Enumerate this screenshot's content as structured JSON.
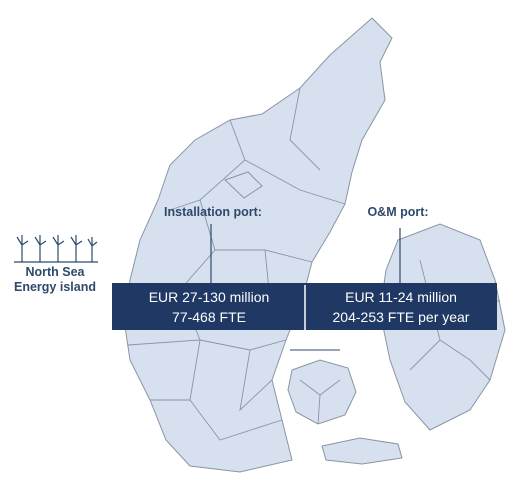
{
  "annotations": {
    "installation_port": {
      "label": "Installation port:",
      "lines": [
        "EUR 27-130 million",
        "77-468 FTE"
      ]
    },
    "om_port": {
      "label": "O&M port:",
      "lines": [
        "EUR 11-24 million",
        "204-253 FTE per year"
      ]
    },
    "energy_island": {
      "lines": [
        "North Sea",
        "Energy island"
      ]
    }
  }
}
